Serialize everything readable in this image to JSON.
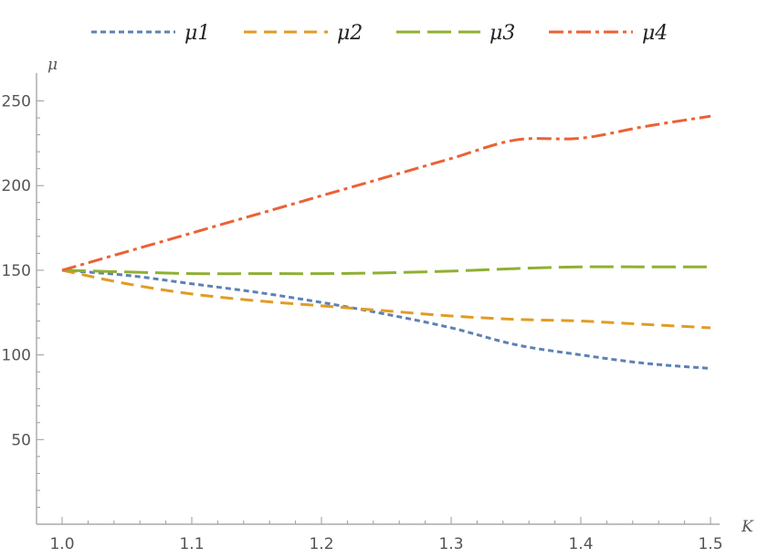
{
  "chart_data": {
    "type": "line",
    "title": "",
    "xlabel": "K",
    "ylabel": "μ",
    "xlim": [
      1.0,
      1.5
    ],
    "ylim": [
      0,
      260
    ],
    "x_ticks": [
      1.0,
      1.1,
      1.2,
      1.3,
      1.4,
      1.5
    ],
    "x_tick_labels": [
      "1.0",
      "1.1",
      "1.2",
      "1.3",
      "1.4",
      "1.5"
    ],
    "y_ticks": [
      50,
      100,
      150,
      200,
      250
    ],
    "y_tick_labels": [
      "50",
      "100",
      "150",
      "200",
      "250"
    ],
    "grid": false,
    "legend_position": "top",
    "series": [
      {
        "name": "μ1",
        "color": "#5E81B5",
        "style": "dotted",
        "x": [
          1.0,
          1.05,
          1.1,
          1.15,
          1.2,
          1.25,
          1.3,
          1.35,
          1.4,
          1.45,
          1.5
        ],
        "y": [
          150,
          147,
          142,
          137,
          131,
          124,
          116,
          106,
          100,
          95,
          92
        ]
      },
      {
        "name": "μ2",
        "color": "#E19C24",
        "style": "dashed",
        "x": [
          1.0,
          1.05,
          1.1,
          1.15,
          1.2,
          1.25,
          1.3,
          1.35,
          1.4,
          1.45,
          1.5
        ],
        "y": [
          150,
          142,
          136,
          132,
          129,
          126,
          123,
          121,
          120,
          118,
          116
        ]
      },
      {
        "name": "μ3",
        "color": "#8FB032",
        "style": "long-dashed",
        "x": [
          1.0,
          1.05,
          1.1,
          1.15,
          1.2,
          1.25,
          1.3,
          1.35,
          1.4,
          1.45,
          1.5
        ],
        "y": [
          150,
          149,
          148,
          148,
          148,
          148.5,
          149.5,
          151,
          152,
          152,
          152
        ]
      },
      {
        "name": "μ4",
        "color": "#EB6235",
        "style": "dash-dot",
        "x": [
          1.0,
          1.05,
          1.1,
          1.15,
          1.2,
          1.25,
          1.3,
          1.35,
          1.4,
          1.45,
          1.5
        ],
        "y": [
          150,
          161,
          172,
          183,
          194,
          205,
          216,
          227,
          228,
          235,
          241
        ]
      }
    ]
  }
}
